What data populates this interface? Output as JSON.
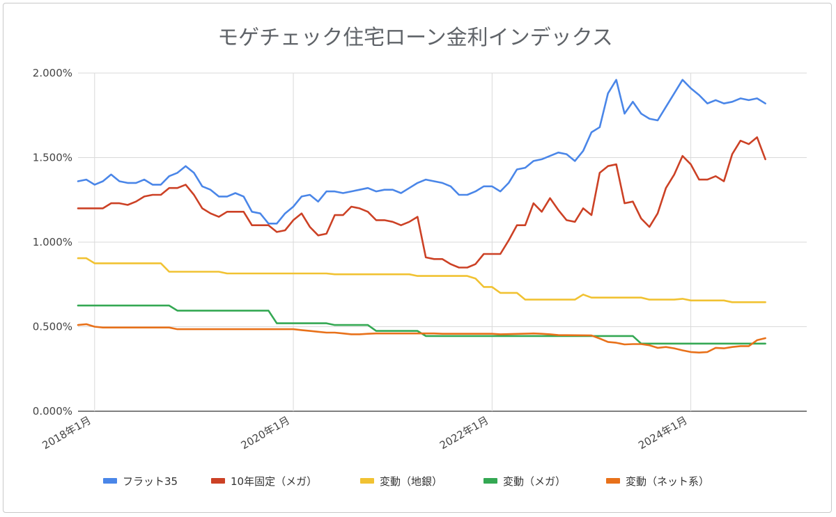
{
  "chart_data": {
    "type": "line",
    "title": "モゲチェック住宅ローン金利インデックス",
    "xlabel": "",
    "ylabel": "",
    "x_start": "2017-11",
    "x_end": "2025-03",
    "x_ticks": [
      {
        "date": "2018-01",
        "label": "2018年1月"
      },
      {
        "date": "2020-01",
        "label": "2020年1月"
      },
      {
        "date": "2022-01",
        "label": "2022年1月"
      },
      {
        "date": "2024-01",
        "label": "2024年1月"
      }
    ],
    "ylim": [
      0,
      2
    ],
    "y_ticks": [
      {
        "value": 0,
        "label": "0.000%"
      },
      {
        "value": 0.5,
        "label": "0.500%"
      },
      {
        "value": 1.0,
        "label": "1.000%"
      },
      {
        "value": 1.5,
        "label": "1.500%"
      },
      {
        "value": 2.0,
        "label": "2.000%"
      }
    ],
    "grid": true,
    "legend_position": "bottom",
    "series": [
      {
        "name": "フラット35",
        "color": "#4a86e8",
        "points": [
          [
            "2017-11",
            1.36
          ],
          [
            "2017-12",
            1.37
          ],
          [
            "2018-01",
            1.34
          ],
          [
            "2018-02",
            1.36
          ],
          [
            "2018-03",
            1.4
          ],
          [
            "2018-04",
            1.36
          ],
          [
            "2018-05",
            1.35
          ],
          [
            "2018-06",
            1.35
          ],
          [
            "2018-07",
            1.37
          ],
          [
            "2018-08",
            1.34
          ],
          [
            "2018-09",
            1.34
          ],
          [
            "2018-10",
            1.39
          ],
          [
            "2018-11",
            1.41
          ],
          [
            "2018-12",
            1.45
          ],
          [
            "2019-01",
            1.41
          ],
          [
            "2019-02",
            1.33
          ],
          [
            "2019-03",
            1.31
          ],
          [
            "2019-04",
            1.27
          ],
          [
            "2019-05",
            1.27
          ],
          [
            "2019-06",
            1.29
          ],
          [
            "2019-07",
            1.27
          ],
          [
            "2019-08",
            1.18
          ],
          [
            "2019-09",
            1.17
          ],
          [
            "2019-10",
            1.11
          ],
          [
            "2019-11",
            1.11
          ],
          [
            "2019-12",
            1.17
          ],
          [
            "2020-01",
            1.21
          ],
          [
            "2020-02",
            1.27
          ],
          [
            "2020-03",
            1.28
          ],
          [
            "2020-04",
            1.24
          ],
          [
            "2020-05",
            1.3
          ],
          [
            "2020-06",
            1.3
          ],
          [
            "2020-07",
            1.29
          ],
          [
            "2020-08",
            1.3
          ],
          [
            "2020-09",
            1.31
          ],
          [
            "2020-10",
            1.32
          ],
          [
            "2020-11",
            1.3
          ],
          [
            "2020-12",
            1.31
          ],
          [
            "2021-01",
            1.31
          ],
          [
            "2021-02",
            1.29
          ],
          [
            "2021-03",
            1.32
          ],
          [
            "2021-04",
            1.35
          ],
          [
            "2021-05",
            1.37
          ],
          [
            "2021-06",
            1.36
          ],
          [
            "2021-07",
            1.35
          ],
          [
            "2021-08",
            1.33
          ],
          [
            "2021-09",
            1.28
          ],
          [
            "2021-10",
            1.28
          ],
          [
            "2021-11",
            1.3
          ],
          [
            "2021-12",
            1.33
          ],
          [
            "2022-01",
            1.33
          ],
          [
            "2022-02",
            1.3
          ],
          [
            "2022-03",
            1.35
          ],
          [
            "2022-04",
            1.43
          ],
          [
            "2022-05",
            1.44
          ],
          [
            "2022-06",
            1.48
          ],
          [
            "2022-07",
            1.49
          ],
          [
            "2022-08",
            1.51
          ],
          [
            "2022-09",
            1.53
          ],
          [
            "2022-10",
            1.52
          ],
          [
            "2022-11",
            1.48
          ],
          [
            "2022-12",
            1.54
          ],
          [
            "2023-01",
            1.65
          ],
          [
            "2023-02",
            1.68
          ],
          [
            "2023-03",
            1.88
          ],
          [
            "2023-04",
            1.96
          ],
          [
            "2023-05",
            1.76
          ],
          [
            "2023-06",
            1.83
          ],
          [
            "2023-07",
            1.76
          ],
          [
            "2023-08",
            1.73
          ],
          [
            "2023-09",
            1.72
          ],
          [
            "2023-10",
            1.8
          ],
          [
            "2023-11",
            1.88
          ],
          [
            "2023-12",
            1.96
          ],
          [
            "2024-01",
            1.91
          ],
          [
            "2024-02",
            1.87
          ],
          [
            "2024-03",
            1.82
          ],
          [
            "2024-04",
            1.84
          ],
          [
            "2024-05",
            1.82
          ],
          [
            "2024-06",
            1.83
          ],
          [
            "2024-07",
            1.85
          ],
          [
            "2024-08",
            1.84
          ],
          [
            "2024-09",
            1.85
          ],
          [
            "2024-10",
            1.82
          ]
        ]
      },
      {
        "name": "10年固定（メガ）",
        "color": "#cc4125",
        "points": [
          [
            "2017-11",
            1.2
          ],
          [
            "2017-12",
            1.2
          ],
          [
            "2018-01",
            1.2
          ],
          [
            "2018-02",
            1.2
          ],
          [
            "2018-03",
            1.23
          ],
          [
            "2018-04",
            1.23
          ],
          [
            "2018-05",
            1.22
          ],
          [
            "2018-06",
            1.24
          ],
          [
            "2018-07",
            1.27
          ],
          [
            "2018-08",
            1.28
          ],
          [
            "2018-09",
            1.28
          ],
          [
            "2018-10",
            1.32
          ],
          [
            "2018-11",
            1.32
          ],
          [
            "2018-12",
            1.34
          ],
          [
            "2019-01",
            1.28
          ],
          [
            "2019-02",
            1.2
          ],
          [
            "2019-03",
            1.17
          ],
          [
            "2019-04",
            1.15
          ],
          [
            "2019-05",
            1.18
          ],
          [
            "2019-06",
            1.18
          ],
          [
            "2019-07",
            1.18
          ],
          [
            "2019-08",
            1.1
          ],
          [
            "2019-09",
            1.1
          ],
          [
            "2019-10",
            1.1
          ],
          [
            "2019-11",
            1.06
          ],
          [
            "2019-12",
            1.07
          ],
          [
            "2020-01",
            1.13
          ],
          [
            "2020-02",
            1.17
          ],
          [
            "2020-03",
            1.09
          ],
          [
            "2020-04",
            1.04
          ],
          [
            "2020-05",
            1.05
          ],
          [
            "2020-06",
            1.16
          ],
          [
            "2020-07",
            1.16
          ],
          [
            "2020-08",
            1.21
          ],
          [
            "2020-09",
            1.2
          ],
          [
            "2020-10",
            1.18
          ],
          [
            "2020-11",
            1.13
          ],
          [
            "2020-12",
            1.13
          ],
          [
            "2021-01",
            1.12
          ],
          [
            "2021-02",
            1.1
          ],
          [
            "2021-03",
            1.12
          ],
          [
            "2021-04",
            1.15
          ],
          [
            "2021-05",
            0.91
          ],
          [
            "2021-06",
            0.9
          ],
          [
            "2021-07",
            0.9
          ],
          [
            "2021-08",
            0.87
          ],
          [
            "2021-09",
            0.85
          ],
          [
            "2021-10",
            0.85
          ],
          [
            "2021-11",
            0.87
          ],
          [
            "2021-12",
            0.93
          ],
          [
            "2022-01",
            0.93
          ],
          [
            "2022-02",
            0.93
          ],
          [
            "2022-03",
            1.01
          ],
          [
            "2022-04",
            1.1
          ],
          [
            "2022-05",
            1.1
          ],
          [
            "2022-06",
            1.23
          ],
          [
            "2022-07",
            1.18
          ],
          [
            "2022-08",
            1.26
          ],
          [
            "2022-09",
            1.19
          ],
          [
            "2022-10",
            1.13
          ],
          [
            "2022-11",
            1.12
          ],
          [
            "2022-12",
            1.2
          ],
          [
            "2023-01",
            1.16
          ],
          [
            "2023-02",
            1.41
          ],
          [
            "2023-03",
            1.45
          ],
          [
            "2023-04",
            1.46
          ],
          [
            "2023-05",
            1.23
          ],
          [
            "2023-06",
            1.24
          ],
          [
            "2023-07",
            1.14
          ],
          [
            "2023-08",
            1.09
          ],
          [
            "2023-09",
            1.17
          ],
          [
            "2023-10",
            1.32
          ],
          [
            "2023-11",
            1.4
          ],
          [
            "2023-12",
            1.51
          ],
          [
            "2024-01",
            1.46
          ],
          [
            "2024-02",
            1.37
          ],
          [
            "2024-03",
            1.37
          ],
          [
            "2024-04",
            1.39
          ],
          [
            "2024-05",
            1.36
          ],
          [
            "2024-06",
            1.52
          ],
          [
            "2024-07",
            1.6
          ],
          [
            "2024-08",
            1.58
          ],
          [
            "2024-09",
            1.62
          ],
          [
            "2024-10",
            1.49
          ]
        ]
      },
      {
        "name": "変動（地銀）",
        "color": "#f1c232",
        "points": [
          [
            "2017-11",
            0.905
          ],
          [
            "2017-12",
            0.905
          ],
          [
            "2018-01",
            0.875
          ],
          [
            "2018-09",
            0.875
          ],
          [
            "2018-10",
            0.825
          ],
          [
            "2019-04",
            0.825
          ],
          [
            "2019-05",
            0.815
          ],
          [
            "2020-05",
            0.815
          ],
          [
            "2020-06",
            0.81
          ],
          [
            "2021-03",
            0.81
          ],
          [
            "2021-04",
            0.8
          ],
          [
            "2021-10",
            0.8
          ],
          [
            "2021-11",
            0.785
          ],
          [
            "2021-12",
            0.735
          ],
          [
            "2022-01",
            0.735
          ],
          [
            "2022-02",
            0.7
          ],
          [
            "2022-04",
            0.7
          ],
          [
            "2022-05",
            0.66
          ],
          [
            "2022-11",
            0.66
          ],
          [
            "2022-12",
            0.69
          ],
          [
            "2023-01",
            0.672
          ],
          [
            "2023-07",
            0.672
          ],
          [
            "2023-08",
            0.66
          ],
          [
            "2023-11",
            0.66
          ],
          [
            "2023-12",
            0.665
          ],
          [
            "2024-01",
            0.655
          ],
          [
            "2024-05",
            0.655
          ],
          [
            "2024-06",
            0.645
          ],
          [
            "2024-10",
            0.645
          ]
        ]
      },
      {
        "name": "変動（メガ）",
        "color": "#34a853",
        "points": [
          [
            "2017-11",
            0.625
          ],
          [
            "2018-10",
            0.625
          ],
          [
            "2018-11",
            0.595
          ],
          [
            "2019-09",
            0.595
          ],
          [
            "2019-10",
            0.595
          ],
          [
            "2019-11",
            0.52
          ],
          [
            "2020-05",
            0.52
          ],
          [
            "2020-06",
            0.51
          ],
          [
            "2020-10",
            0.51
          ],
          [
            "2020-11",
            0.475
          ],
          [
            "2021-04",
            0.475
          ],
          [
            "2021-05",
            0.445
          ],
          [
            "2023-05",
            0.445
          ],
          [
            "2023-06",
            0.445
          ],
          [
            "2023-07",
            0.4
          ],
          [
            "2024-10",
            0.4
          ]
        ]
      },
      {
        "name": "変動（ネット系）",
        "color": "#e8711a",
        "points": [
          [
            "2017-11",
            0.51
          ],
          [
            "2017-12",
            0.515
          ],
          [
            "2018-01",
            0.5
          ],
          [
            "2018-02",
            0.495
          ],
          [
            "2018-10",
            0.495
          ],
          [
            "2018-11",
            0.485
          ],
          [
            "2020-01",
            0.485
          ],
          [
            "2020-02",
            0.48
          ],
          [
            "2020-03",
            0.475
          ],
          [
            "2020-04",
            0.47
          ],
          [
            "2020-05",
            0.465
          ],
          [
            "2020-06",
            0.465
          ],
          [
            "2020-07",
            0.46
          ],
          [
            "2020-08",
            0.455
          ],
          [
            "2020-09",
            0.455
          ],
          [
            "2020-10",
            0.458
          ],
          [
            "2020-11",
            0.46
          ],
          [
            "2021-06",
            0.46
          ],
          [
            "2021-07",
            0.458
          ],
          [
            "2022-01",
            0.458
          ],
          [
            "2022-02",
            0.455
          ],
          [
            "2022-06",
            0.46
          ],
          [
            "2022-07",
            0.458
          ],
          [
            "2022-08",
            0.455
          ],
          [
            "2022-09",
            0.45
          ],
          [
            "2023-01",
            0.448
          ],
          [
            "2023-02",
            0.43
          ],
          [
            "2023-03",
            0.41
          ],
          [
            "2023-04",
            0.405
          ],
          [
            "2023-05",
            0.395
          ],
          [
            "2023-06",
            0.397
          ],
          [
            "2023-07",
            0.397
          ],
          [
            "2023-08",
            0.39
          ],
          [
            "2023-09",
            0.375
          ],
          [
            "2023-10",
            0.38
          ],
          [
            "2023-11",
            0.372
          ],
          [
            "2023-12",
            0.36
          ],
          [
            "2024-01",
            0.35
          ],
          [
            "2024-02",
            0.347
          ],
          [
            "2024-03",
            0.35
          ],
          [
            "2024-04",
            0.375
          ],
          [
            "2024-05",
            0.372
          ],
          [
            "2024-06",
            0.38
          ],
          [
            "2024-07",
            0.385
          ],
          [
            "2024-08",
            0.385
          ],
          [
            "2024-09",
            0.42
          ],
          [
            "2024-10",
            0.432
          ]
        ]
      }
    ]
  }
}
